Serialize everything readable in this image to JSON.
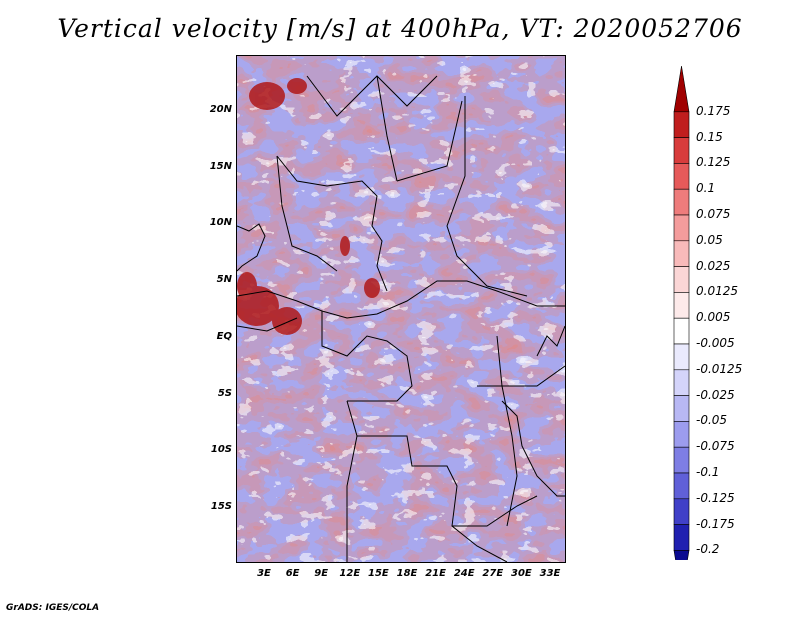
{
  "title": "Vertical velocity [m/s] at 400hPa, VT: 2020052706",
  "footer": "GrADS: IGES/COLA",
  "lat_labels": [
    "20N",
    "15N",
    "10N",
    "5N",
    "EQ",
    "5S",
    "10S",
    "15S"
  ],
  "lon_labels": [
    "3E",
    "6E",
    "9E",
    "12E",
    "15E",
    "18E",
    "21E",
    "24E",
    "27E",
    "30E",
    "33E"
  ],
  "colorbar": {
    "labels": [
      "0.175",
      "0.15",
      "0.125",
      "0.1",
      "0.075",
      "0.05",
      "0.025",
      "0.0125",
      "0.005",
      "-0.005",
      "-0.0125",
      "-0.025",
      "-0.05",
      "-0.075",
      "-0.1",
      "-0.125",
      "-0.175",
      "-0.2"
    ],
    "colors": [
      "#a00000",
      "#c01e1e",
      "#d83c3c",
      "#e65a5a",
      "#ee7c7c",
      "#f49c9c",
      "#f8baba",
      "#fbd6d6",
      "#fdeaea",
      "#ffffff",
      "#eaeafd",
      "#d4d4fa",
      "#b8b8f4",
      "#9c9cee",
      "#7e7ee4",
      "#6060d8",
      "#4040c8",
      "#2020b0",
      "#0a0a90"
    ]
  }
}
